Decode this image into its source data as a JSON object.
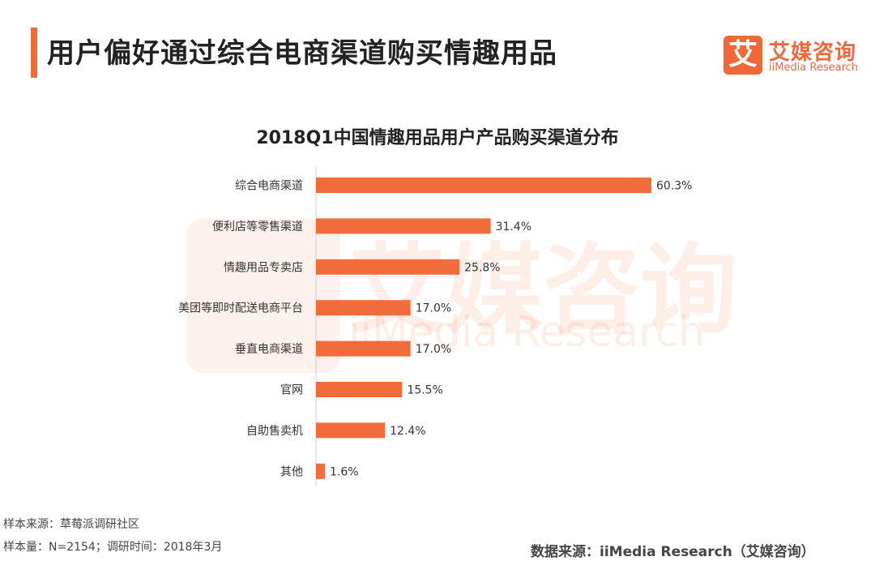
{
  "header": {
    "title": "用户偏好通过综合电商渠道购买情趣用品"
  },
  "logo": {
    "cn": "艾媒咨询",
    "en": "iiMedia Research",
    "mark": "艾"
  },
  "colors": {
    "bar": "#f26b3a",
    "accent": "#f26b3a"
  },
  "chart_data": {
    "type": "bar",
    "orientation": "horizontal",
    "title": "2018Q1中国情趣用品用户产品购买渠道分布",
    "categories": [
      "综合电商渠道",
      "便利店等零售渠道",
      "情趣用品专卖店",
      "美团等即时配送电商平台",
      "垂直电商渠道",
      "官网",
      "自助售卖机",
      "其他"
    ],
    "values": [
      60.3,
      31.4,
      25.8,
      17.0,
      17.0,
      15.5,
      12.4,
      1.6
    ],
    "labels": [
      "60.3%",
      "31.4%",
      "25.8%",
      "17.0%",
      "17.0%",
      "15.5%",
      "12.4%",
      "1.6%"
    ],
    "unit": "%",
    "grid": false
  },
  "footer": {
    "sample_source": "样本来源：草莓派调研社区",
    "sample_size": "样本量：N=2154；调研时间：2018年3月",
    "data_source": "数据来源：iiMedia Research（艾媒咨询）"
  }
}
